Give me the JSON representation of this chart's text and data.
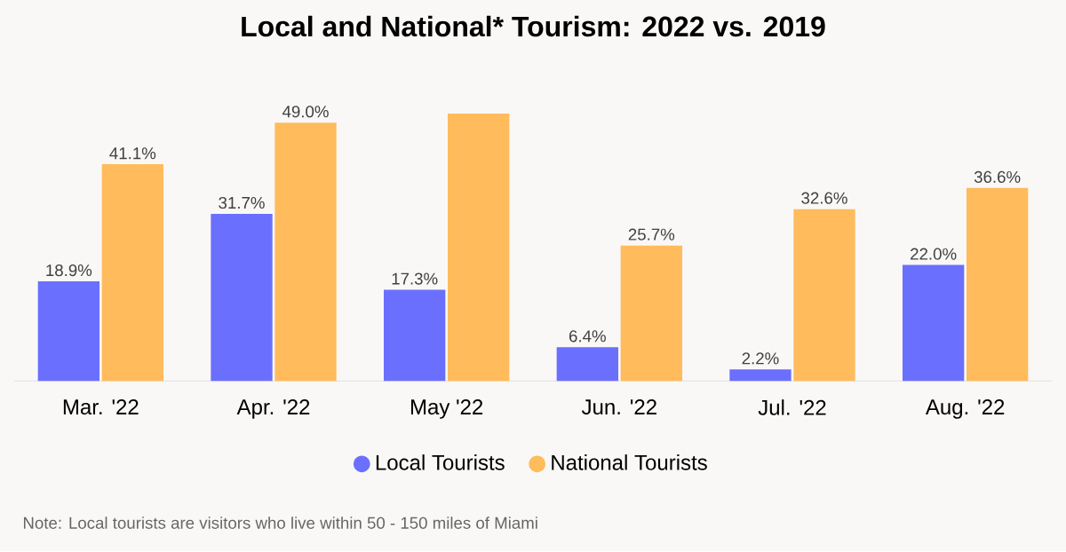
{
  "chart_data": {
    "type": "bar",
    "title": "Local and National* Tourism: 2022 vs. 2019",
    "categories": [
      "Mar. '22",
      "Apr. '22",
      "May '22",
      "Jun. '22",
      "Jul. '22",
      "Aug. '22"
    ],
    "series": [
      {
        "name": "Local Tourists",
        "color": "#6b6ffe",
        "values": [
          18.9,
          31.7,
          17.3,
          6.4,
          2.2,
          22.0
        ],
        "value_labels": [
          "18.9%",
          "31.7%",
          "17.3%",
          "6.4%",
          "2.2%",
          "22.0%"
        ]
      },
      {
        "name": "National Tourists",
        "color": "#ffbb5c",
        "values": [
          41.1,
          49.0,
          50.7,
          25.7,
          32.6,
          36.6
        ],
        "value_labels": [
          "41.1%",
          "49.0%",
          null,
          "25.7%",
          "32.6%",
          "36.6%"
        ]
      }
    ],
    "legend": "bottom",
    "annotations": [
      "Note: Local tourists are visitors who live within 50 - 150 miles of Miami"
    ]
  }
}
